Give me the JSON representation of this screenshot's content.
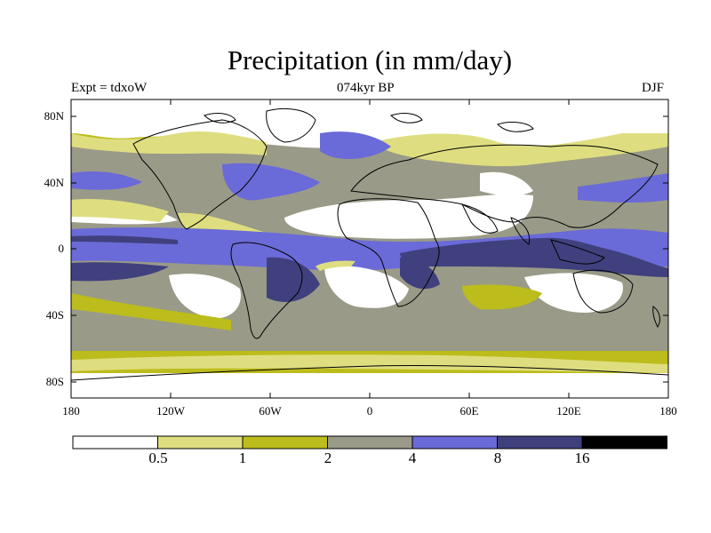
{
  "figure": {
    "title": "Precipitation (in mm/day)",
    "left_subtitle": "Expt = tdxoW",
    "center_subtitle": "074kyr BP",
    "right_subtitle": "DJF"
  },
  "axes": {
    "lat_labels": [
      "80N",
      "40N",
      "0",
      "40S",
      "80S"
    ],
    "lon_labels": [
      "180",
      "120W",
      "60W",
      "0",
      "60E",
      "120E",
      "180"
    ]
  },
  "colorbar": {
    "levels": [
      "0.5",
      "1",
      "2",
      "4",
      "8",
      "16"
    ],
    "colors": [
      "#ffffff",
      "#dede80",
      "#bcbc1c",
      "#9a9a88",
      "#6a6ad8",
      "#40407e",
      "#000000"
    ]
  }
}
